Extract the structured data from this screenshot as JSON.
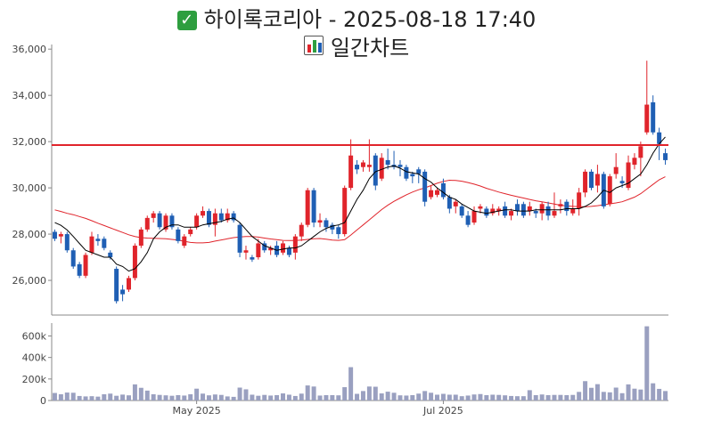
{
  "header": {
    "title": "하이록코리아 - 2025-08-18 17:40",
    "subtitle": "일간차트",
    "title_icon": "check-mark-icon",
    "subtitle_icon": "bar-chart-icon"
  },
  "colors": {
    "up": "#e0242b",
    "down": "#1f5fb4",
    "ma_short": "#000000",
    "ma_long": "#e0242b",
    "resistance": "#e0242b",
    "volume": "#9aa0c0"
  },
  "chart_data": {
    "type": "candlestick",
    "price_axis": {
      "ylim": [
        24500,
        36200
      ],
      "ticks": [
        26000,
        28000,
        30000,
        32000,
        34000,
        36000
      ],
      "tick_labels": [
        "26,000",
        "28,000",
        "30,000",
        "32,000",
        "34,000",
        "36,000"
      ]
    },
    "volume_axis": {
      "ylim": [
        0,
        720000
      ],
      "ticks": [
        0,
        200000,
        400000,
        600000
      ],
      "tick_labels": [
        "0",
        "200k",
        "400k",
        "600k"
      ]
    },
    "x_axis": {
      "tick_labels": [
        "May 2025",
        "Jul 2025"
      ],
      "tick_index": [
        23,
        63
      ]
    },
    "resistance_level": 31850,
    "candles": [
      [
        28100,
        28200,
        27700,
        27800
      ],
      [
        27900,
        28100,
        27600,
        28000
      ],
      [
        28000,
        28100,
        27200,
        27300
      ],
      [
        27300,
        27400,
        26500,
        26600
      ],
      [
        26700,
        26800,
        26100,
        26200
      ],
      [
        26200,
        27200,
        26100,
        27100
      ],
      [
        27200,
        28100,
        27100,
        27900
      ],
      [
        27800,
        28000,
        27500,
        27700
      ],
      [
        27800,
        27900,
        27300,
        27400
      ],
      [
        27200,
        27300,
        26900,
        27000
      ],
      [
        26500,
        26600,
        25000,
        25100
      ],
      [
        25600,
        25800,
        25100,
        25400
      ],
      [
        25600,
        26200,
        25500,
        26100
      ],
      [
        26100,
        27600,
        26000,
        27500
      ],
      [
        27500,
        28300,
        27400,
        28200
      ],
      [
        28200,
        28800,
        28100,
        28700
      ],
      [
        28700,
        29000,
        28500,
        28900
      ],
      [
        28900,
        29000,
        28200,
        28300
      ],
      [
        28200,
        28900,
        28100,
        28800
      ],
      [
        28800,
        28900,
        28200,
        28300
      ],
      [
        28200,
        28300,
        27600,
        27700
      ],
      [
        27500,
        28000,
        27400,
        27900
      ],
      [
        28000,
        28300,
        27900,
        28200
      ],
      [
        28300,
        28900,
        28200,
        28800
      ],
      [
        28800,
        29200,
        28700,
        29000
      ],
      [
        29000,
        29100,
        28300,
        28400
      ],
      [
        28400,
        29100,
        27900,
        28900
      ],
      [
        28900,
        29100,
        28500,
        28600
      ],
      [
        28600,
        29100,
        28500,
        28900
      ],
      [
        28900,
        29000,
        28500,
        28600
      ],
      [
        28400,
        28500,
        27000,
        27200
      ],
      [
        27200,
        27500,
        26900,
        27300
      ],
      [
        27000,
        27100,
        26800,
        26900
      ],
      [
        27000,
        27800,
        26900,
        27600
      ],
      [
        27600,
        27700,
        27200,
        27300
      ],
      [
        27300,
        27500,
        27100,
        27400
      ],
      [
        27500,
        27700,
        27000,
        27100
      ],
      [
        27200,
        27700,
        27100,
        27600
      ],
      [
        27400,
        27500,
        27000,
        27100
      ],
      [
        27200,
        28000,
        26900,
        27900
      ],
      [
        27900,
        28500,
        27700,
        28400
      ],
      [
        28400,
        30000,
        28300,
        29900
      ],
      [
        29900,
        30000,
        28300,
        28500
      ],
      [
        28500,
        28900,
        28300,
        28600
      ],
      [
        28600,
        28700,
        28100,
        28300
      ],
      [
        28400,
        28500,
        28000,
        28200
      ],
      [
        28300,
        28400,
        27800,
        28000
      ],
      [
        28000,
        30100,
        27900,
        30000
      ],
      [
        30000,
        32100,
        29900,
        31400
      ],
      [
        31000,
        31200,
        30600,
        30800
      ],
      [
        30900,
        31200,
        30700,
        31100
      ],
      [
        30900,
        32100,
        30700,
        31000
      ],
      [
        31400,
        31500,
        29900,
        30100
      ],
      [
        30400,
        31500,
        30300,
        31300
      ],
      [
        31200,
        31700,
        30800,
        31000
      ],
      [
        31000,
        31600,
        30800,
        30900
      ],
      [
        31000,
        31200,
        30500,
        30900
      ],
      [
        30900,
        31000,
        30300,
        30400
      ],
      [
        30600,
        30700,
        30200,
        30500
      ],
      [
        30800,
        30900,
        30200,
        30600
      ],
      [
        30700,
        30800,
        29200,
        29400
      ],
      [
        29600,
        30100,
        29500,
        29900
      ],
      [
        29700,
        30000,
        29600,
        29900
      ],
      [
        30200,
        30400,
        29500,
        29600
      ],
      [
        29600,
        29700,
        28900,
        29100
      ],
      [
        29200,
        29500,
        28900,
        29400
      ],
      [
        29200,
        29300,
        28700,
        28800
      ],
      [
        28800,
        29000,
        28300,
        28400
      ],
      [
        28500,
        29200,
        28400,
        29000
      ],
      [
        29100,
        29300,
        28900,
        29200
      ],
      [
        29100,
        29200,
        28700,
        28800
      ],
      [
        28900,
        29300,
        28800,
        29100
      ],
      [
        29000,
        29200,
        28800,
        29100
      ],
      [
        29200,
        29400,
        28700,
        28800
      ],
      [
        28800,
        29100,
        28600,
        29000
      ],
      [
        29300,
        29500,
        28800,
        29000
      ],
      [
        29300,
        29400,
        28700,
        28800
      ],
      [
        29000,
        29400,
        28800,
        29200
      ],
      [
        29000,
        29100,
        28700,
        28900
      ],
      [
        28900,
        29400,
        28600,
        29300
      ],
      [
        29200,
        29400,
        28600,
        28800
      ],
      [
        28800,
        29800,
        28700,
        29000
      ],
      [
        29200,
        29500,
        28900,
        29300
      ],
      [
        29400,
        29500,
        28800,
        29000
      ],
      [
        28900,
        29500,
        28800,
        29100
      ],
      [
        29100,
        30000,
        28800,
        29800
      ],
      [
        29800,
        30800,
        29600,
        30700
      ],
      [
        30700,
        30800,
        29900,
        30000
      ],
      [
        30100,
        31000,
        29800,
        30600
      ],
      [
        30600,
        30700,
        29100,
        29200
      ],
      [
        29300,
        30600,
        29200,
        30500
      ],
      [
        30600,
        31500,
        30400,
        30900
      ],
      [
        30300,
        30500,
        30000,
        30200
      ],
      [
        30000,
        31400,
        29900,
        31100
      ],
      [
        31000,
        31500,
        30800,
        31300
      ],
      [
        31300,
        32000,
        30500,
        31800
      ],
      [
        32400,
        35500,
        32300,
        33600
      ],
      [
        33700,
        34000,
        32300,
        32400
      ],
      [
        32400,
        32600,
        31200,
        31900
      ],
      [
        31500,
        31700,
        31000,
        31200
      ]
    ],
    "volumes": [
      70000,
      58000,
      74000,
      72000,
      42000,
      38000,
      40000,
      36000,
      58000,
      64000,
      44000,
      55000,
      48000,
      150000,
      118000,
      92000,
      58000,
      52000,
      48000,
      44000,
      50000,
      46000,
      58000,
      110000,
      64000,
      48000,
      56000,
      52000,
      38000,
      34000,
      120000,
      104000,
      54000,
      44000,
      52000,
      46000,
      50000,
      66000,
      54000,
      42000,
      64000,
      140000,
      130000,
      46000,
      50000,
      50000,
      48000,
      124000,
      310000,
      62000,
      88000,
      130000,
      128000,
      66000,
      82000,
      72000,
      48000,
      46000,
      50000,
      64000,
      88000,
      72000,
      54000,
      62000,
      54000,
      54000,
      40000,
      46000,
      56000,
      60000,
      50000,
      54000,
      52000,
      48000,
      42000,
      40000,
      40000,
      96000,
      50000,
      56000,
      50000,
      52000,
      52000,
      50000,
      52000,
      80000,
      180000,
      118000,
      152000,
      80000,
      76000,
      120000,
      68000,
      150000,
      110000,
      102000,
      690000,
      160000,
      108000,
      88000
    ],
    "ma_short": [
      28500,
      28380,
      28180,
      27900,
      27600,
      27300,
      27200,
      27100,
      27000,
      27000,
      26700,
      26600,
      26400,
      26500,
      26800,
      27200,
      27800,
      28100,
      28300,
      28400,
      28400,
      28300,
      28300,
      28300,
      28400,
      28450,
      28500,
      28550,
      28650,
      28700,
      28500,
      28200,
      27900,
      27700,
      27500,
      27400,
      27300,
      27350,
      27400,
      27400,
      27500,
      27700,
      27900,
      28100,
      28250,
      28350,
      28400,
      28500,
      29000,
      29500,
      29900,
      30400,
      30700,
      30800,
      30900,
      30950,
      30850,
      30700,
      30650,
      30600,
      30400,
      30250,
      30000,
      29800,
      29600,
      29500,
      29300,
      29150,
      29000,
      28950,
      28900,
      28950,
      29000,
      29050,
      29050,
      29000,
      29000,
      29000,
      29050,
      29050,
      29050,
      29050,
      29050,
      29100,
      29100,
      29100,
      29200,
      29350,
      29600,
      29900,
      29800,
      30000,
      30100,
      30200,
      30400,
      30600,
      31000,
      31500,
      31900,
      32200
    ],
    "ma_long": [
      29050,
      28980,
      28900,
      28840,
      28760,
      28680,
      28580,
      28470,
      28370,
      28270,
      28170,
      28070,
      27970,
      27900,
      27850,
      27830,
      27820,
      27810,
      27800,
      27770,
      27740,
      27690,
      27640,
      27620,
      27620,
      27640,
      27700,
      27750,
      27800,
      27850,
      27880,
      27900,
      27900,
      27870,
      27830,
      27790,
      27760,
      27730,
      27720,
      27720,
      27740,
      27770,
      27800,
      27810,
      27780,
      27740,
      27730,
      27760,
      27960,
      28180,
      28400,
      28620,
      28840,
      29060,
      29250,
      29420,
      29560,
      29700,
      29820,
      29920,
      30000,
      30100,
      30200,
      30280,
      30330,
      30320,
      30290,
      30230,
      30160,
      30080,
      29980,
      29900,
      29820,
      29750,
      29680,
      29620,
      29560,
      29500,
      29440,
      29400,
      29350,
      29300,
      29250,
      29220,
      29200,
      29190,
      29180,
      29200,
      29230,
      29270,
      29310,
      29350,
      29400,
      29500,
      29600,
      29750,
      29950,
      30150,
      30350,
      30480
    ]
  }
}
